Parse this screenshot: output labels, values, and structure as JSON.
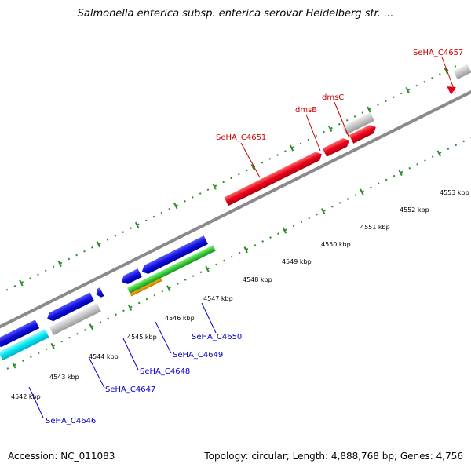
{
  "title": "Salmonella enterica subsp. enterica serovar Heidelberg str. ...",
  "footer": {
    "accession": "Accession: NC_011083",
    "stats": "Topology: circular; Length: 4,888,768 bp; Genes: 4,756"
  },
  "scale_ticks": [
    "4542 kbp",
    "4543 kbp",
    "4544 kbp",
    "4545 kbp",
    "4546 kbp",
    "4547 kbp",
    "4548 kbp",
    "4549 kbp",
    "4550 kbp",
    "4551 kbp",
    "4552 kbp",
    "4553 kbp"
  ],
  "gene_labels_top": [
    "SeHA_C4651",
    "dmsB",
    "dmsC",
    "SeHA_C4657"
  ],
  "gene_labels_bottom": [
    "SeHA_C4646",
    "SeHA_C4647",
    "SeHA_C4648",
    "SeHA_C4649",
    "SeHA_C4650"
  ],
  "colors": {
    "red": "#e8001a",
    "blue": "#1010dd",
    "green": "#33cc33",
    "cyan": "#00e5f0",
    "orange": "#f0a000",
    "grey": "#bfbfbf",
    "backbone": "#8a8a8a",
    "tick": "#2a8a2a"
  }
}
